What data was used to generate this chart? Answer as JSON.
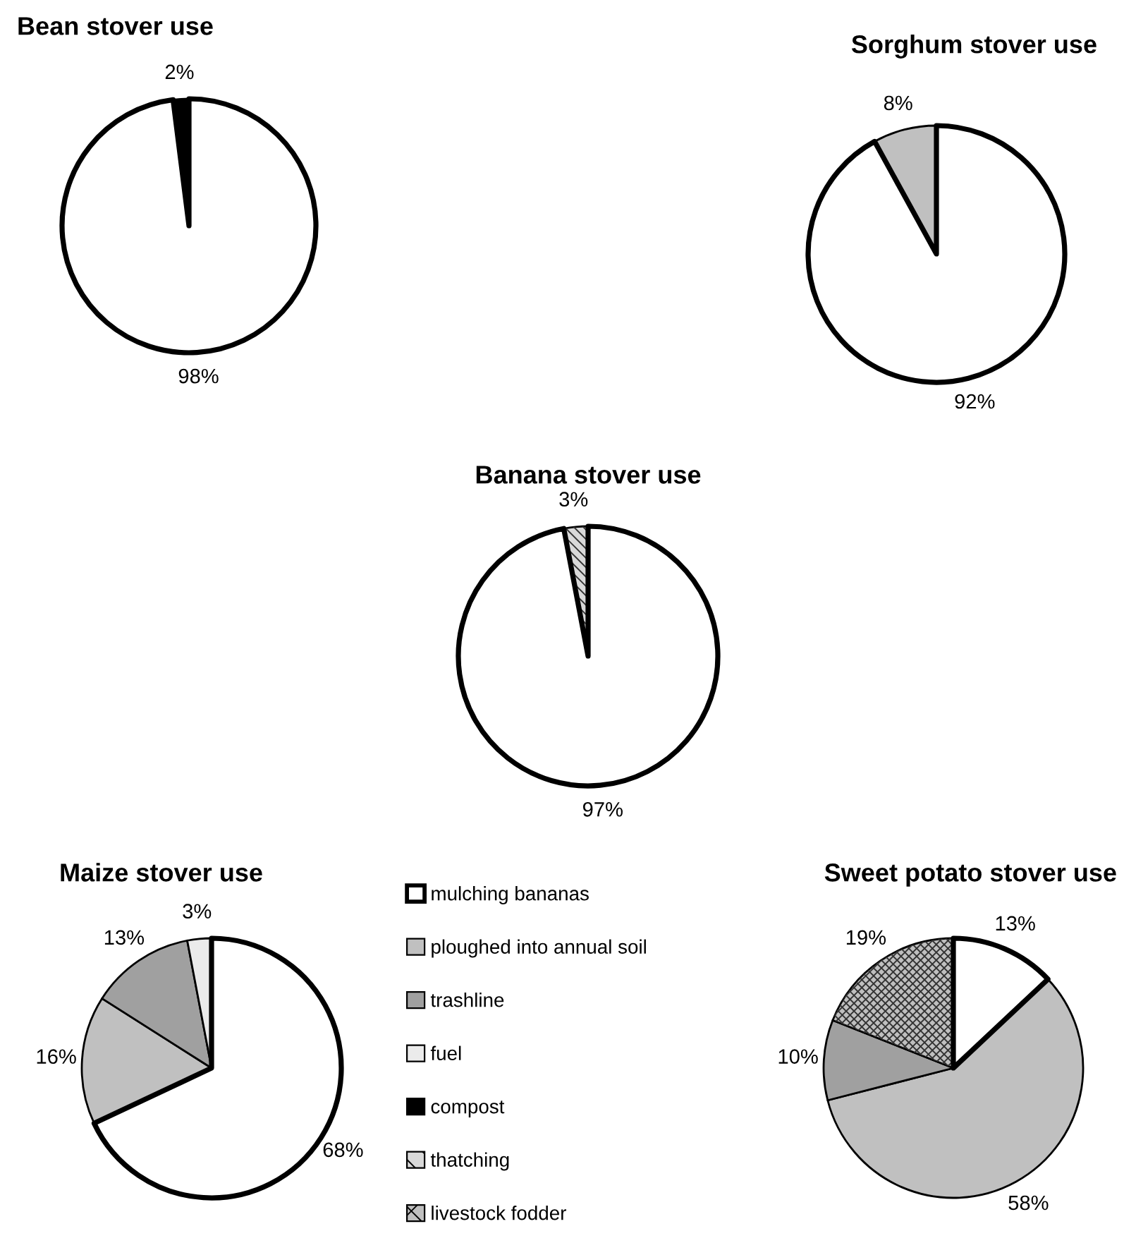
{
  "chart_data": [
    {
      "type": "pie",
      "title": "Bean stover use",
      "categories": [
        "mulching bananas",
        "ploughed into annual soil",
        "trashline",
        "fuel",
        "compost",
        "thatching",
        "livestock fodder"
      ],
      "values": [
        98,
        null,
        null,
        null,
        2,
        null,
        null
      ],
      "value_labels": [
        "98%",
        null,
        null,
        null,
        "2%",
        null,
        null
      ],
      "colors": [
        "#ffffff",
        "#c0c0c0",
        "#a0a0a0",
        "#ebebeb",
        "#000000",
        "#d9d9d9",
        "#bfbfbf"
      ],
      "legend": "bottom"
    },
    {
      "type": "pie",
      "title": "Sorghum stover use",
      "categories": [
        null,
        null,
        null,
        null,
        null,
        null,
        null
      ],
      "values": [
        92,
        8,
        null,
        null,
        null,
        null,
        null
      ],
      "value_labels": [
        "92%",
        "8%",
        null,
        null,
        null,
        null,
        null
      ],
      "colors": [
        "#ffffff",
        "#c0c0c0",
        "#a0a0a0",
        "#ebebeb",
        "#000000",
        "#d9d9d9",
        "#bfbfbf"
      ]
    },
    {
      "type": "pie",
      "title": "Banana stover use",
      "categories": [
        null,
        null,
        null,
        null,
        null,
        null,
        null
      ],
      "values": [
        97,
        null,
        null,
        null,
        null,
        3,
        null
      ],
      "value_labels": [
        "97%",
        null,
        null,
        null,
        null,
        "3%",
        null
      ],
      "colors": [
        "#ffffff",
        "#c0c0c0",
        "#a0a0a0",
        "#ebebeb",
        "#000000",
        "#d9d9d9",
        "#bfbfbf"
      ]
    },
    {
      "type": "pie",
      "title": "Maize stover use",
      "categories": [
        null,
        null,
        null,
        null,
        null,
        null,
        null
      ],
      "values": [
        68,
        16,
        13,
        3,
        null,
        null,
        null
      ],
      "value_labels": [
        "68%",
        "16%",
        "13%",
        "3%",
        null,
        null,
        null
      ],
      "colors": [
        "#ffffff",
        "#c0c0c0",
        "#a0a0a0",
        "#ebebeb",
        "#000000",
        "#d9d9d9",
        "#bfbfbf"
      ]
    },
    {
      "type": "pie",
      "title": "Sweet potato stover use",
      "categories": [
        null,
        null,
        null,
        null,
        null,
        null,
        null
      ],
      "values": [
        13,
        58,
        10,
        null,
        null,
        null,
        19
      ],
      "value_labels": [
        "13%",
        "58%",
        "10%",
        null,
        null,
        null,
        "19%"
      ],
      "colors": [
        "#ffffff",
        "#c0c0c0",
        "#a0a0a0",
        "#ebebeb",
        "#000000",
        "#d9d9d9",
        "#bfbfbf"
      ]
    }
  ]
}
